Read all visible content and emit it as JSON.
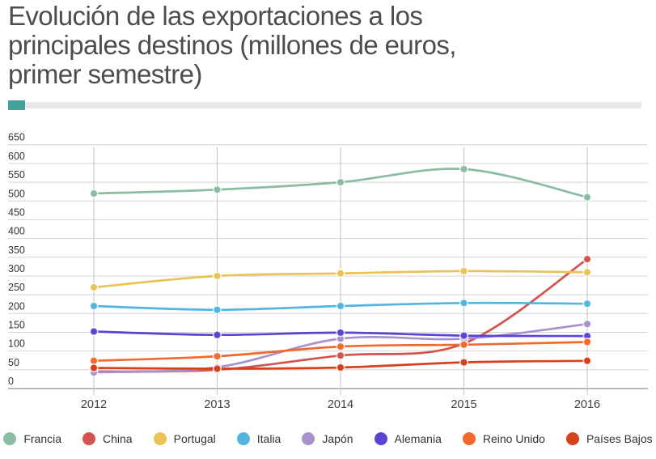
{
  "title": "Evolución de las exportaciones a los principales destinos (millones de euros, primer semestre)",
  "title_lines": [
    "Evolución de las exportaciones a los",
    "principales destinos (millones de euros,",
    "primer semestre)"
  ],
  "accent_color": "#43a39b",
  "chart_data": {
    "type": "line",
    "x": [
      "2012",
      "2013",
      "2014",
      "2015",
      "2016"
    ],
    "series": [
      {
        "name": "Francia",
        "color": "#8abca4",
        "values": [
          520,
          530,
          550,
          585,
          510
        ]
      },
      {
        "name": "China",
        "color": "#d25450",
        "values": [
          45,
          50,
          88,
          120,
          345
        ]
      },
      {
        "name": "Portugal",
        "color": "#eac356",
        "values": [
          270,
          300,
          307,
          313,
          310
        ]
      },
      {
        "name": "Italia",
        "color": "#52b5e0",
        "values": [
          220,
          210,
          220,
          228,
          226
        ]
      },
      {
        "name": "Japón",
        "color": "#a792cd",
        "values": [
          43,
          57,
          133,
          133,
          172
        ]
      },
      {
        "name": "Alemania",
        "color": "#5b44d0",
        "values": [
          152,
          143,
          149,
          141,
          140
        ]
      },
      {
        "name": "Reino Unido",
        "color": "#f3682c",
        "values": [
          74,
          86,
          112,
          117,
          124
        ]
      },
      {
        "name": "Países Bajos",
        "color": "#d6411d",
        "values": [
          55,
          53,
          56,
          70,
          74
        ]
      }
    ],
    "ylim": [
      0,
      650
    ],
    "yticks": [
      0,
      50,
      100,
      150,
      200,
      250,
      300,
      350,
      400,
      450,
      500,
      550,
      600,
      650
    ],
    "grid": true,
    "legend_position": "bottom",
    "title": "Evolución de las exportaciones a los principales destinos (millones de euros, primer semestre)"
  }
}
